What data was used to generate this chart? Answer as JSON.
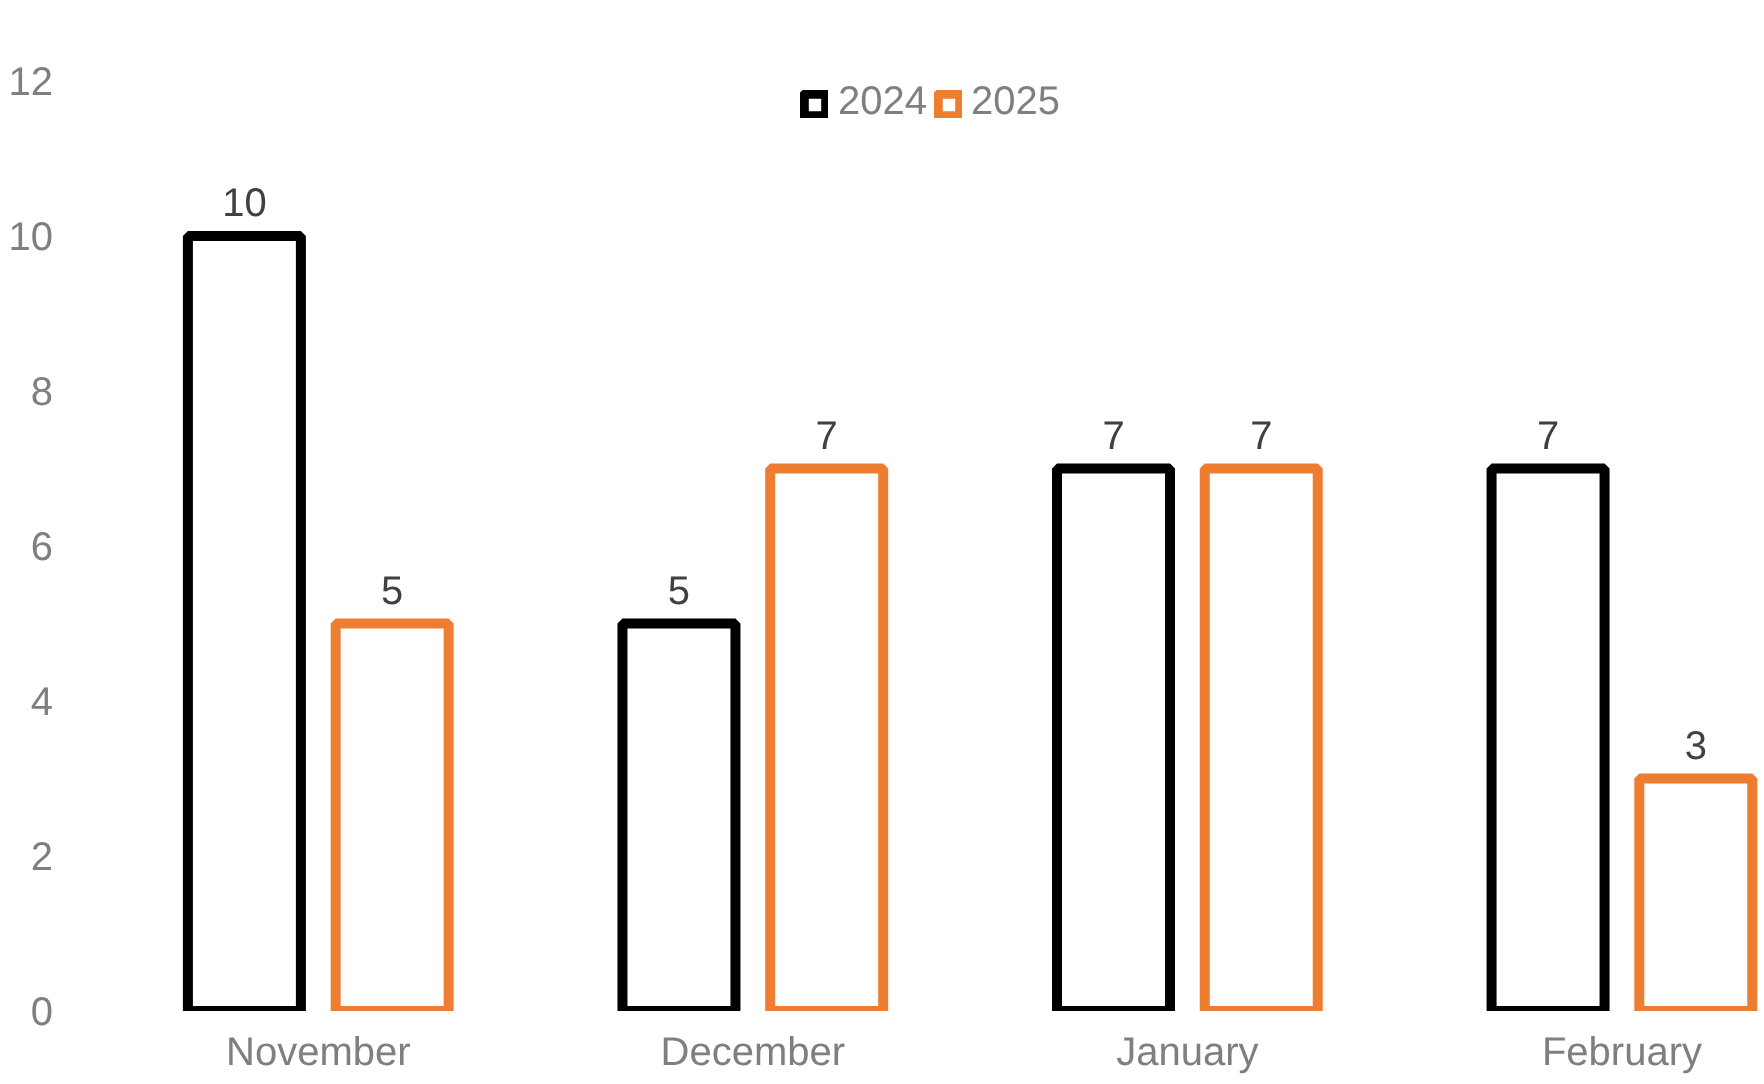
{
  "chart_data": {
    "type": "bar",
    "categories": [
      "November",
      "December",
      "January",
      "February"
    ],
    "series": [
      {
        "name": "2024",
        "color": "#000000",
        "values": [
          10,
          5,
          7,
          7
        ]
      },
      {
        "name": "2025",
        "color": "#ed7d31",
        "values": [
          5,
          7,
          7,
          3
        ]
      }
    ],
    "ylim": [
      0,
      12
    ],
    "yticks": [
      0,
      2,
      4,
      6,
      8,
      10,
      12
    ],
    "grid": false,
    "legend": "top",
    "data_labels": true
  }
}
